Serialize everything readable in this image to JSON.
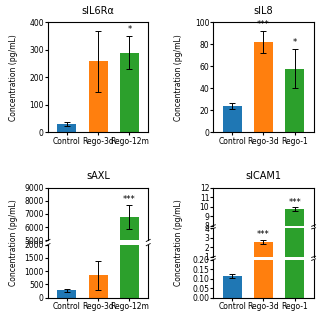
{
  "chart_data": [
    {
      "type": "bar",
      "title": "sIL6Rα",
      "ylabel": "Concentration (pg/mL)",
      "categories": [
        "Control",
        "Rego-3d",
        "Rego-12m"
      ],
      "values": [
        30,
        258,
        290
      ],
      "errors": [
        8,
        110,
        60
      ],
      "annotations": [
        null,
        null,
        "*"
      ],
      "ylim": [
        0,
        400
      ],
      "yticks": [
        0,
        100,
        200,
        300,
        400
      ]
    },
    {
      "type": "bar",
      "title": "sIL8",
      "ylabel": "Concentration (pg/mL)",
      "categories": [
        "Control",
        "Rego-3d",
        "Rego-1"
      ],
      "values": [
        24,
        82,
        58
      ],
      "errors": [
        3,
        10,
        18
      ],
      "annotations": [
        null,
        "***",
        "*"
      ],
      "ylim": [
        0,
        100
      ],
      "yticks": [
        0,
        20,
        40,
        60,
        80,
        100
      ]
    },
    {
      "type": "bar",
      "title": "sAXL",
      "ylabel": "Concentration (pg/mL)",
      "categories": [
        "Control",
        "Rego-3d",
        "Rego-12m"
      ],
      "values": [
        280,
        850,
        6800
      ],
      "errors": [
        50,
        550,
        900
      ],
      "annotations": [
        null,
        null,
        "***"
      ],
      "ylim": [
        [
          5000,
          9000
        ],
        [
          0,
          2000
        ]
      ],
      "yticks": [
        [
          5000,
          6000,
          7000,
          8000,
          9000
        ],
        [
          0,
          500,
          1000,
          1500,
          2000
        ]
      ]
    },
    {
      "type": "bar",
      "title": "sICAM1",
      "ylabel": "Concentration (pg/mL)",
      "categories": [
        "Control",
        "Rego-3d",
        "Rego-1"
      ],
      "values": [
        0.115,
        2.55,
        9.7
      ],
      "errors": [
        0.01,
        0.25,
        0.2
      ],
      "annotations": [
        null,
        "***",
        "***"
      ],
      "ylim": [
        [
          8.0,
          12.0
        ],
        [
          1.0,
          4.0
        ],
        [
          0.0,
          0.2
        ]
      ],
      "yticks": [
        [
          8,
          9,
          10,
          11,
          12
        ],
        [
          1,
          2,
          3,
          4
        ],
        [
          {
            "value": 0.0,
            "label": "0.00"
          },
          {
            "value": 0.05,
            "label": "0.05"
          },
          {
            "value": 0.1,
            "label": "0.10"
          },
          {
            "value": 0.15,
            "label": "0.15"
          },
          {
            "value": 0.2,
            "label": "0.20"
          }
        ]
      ]
    }
  ]
}
